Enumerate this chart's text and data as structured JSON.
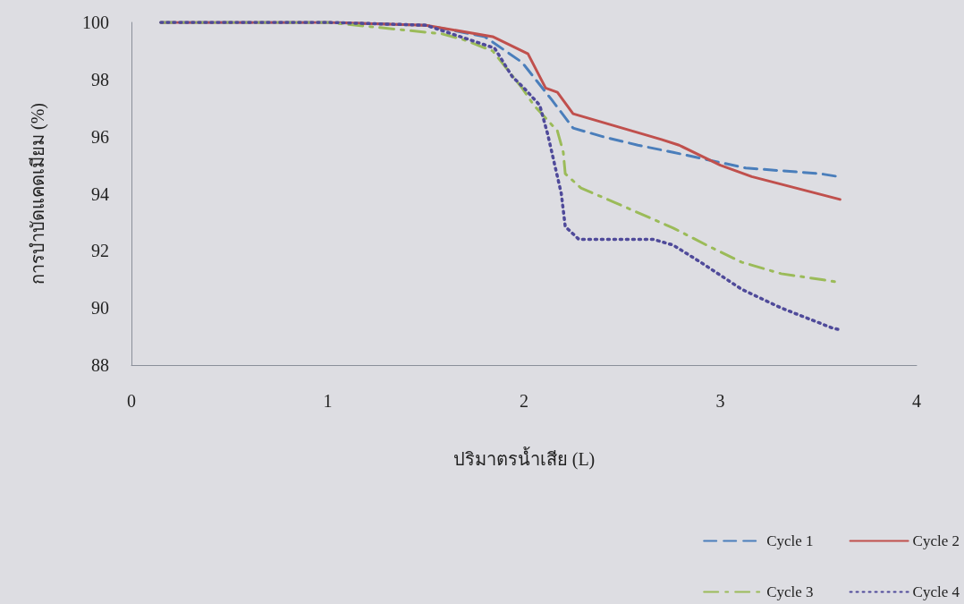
{
  "chart_data": {
    "type": "line",
    "xlabel": "ปริมาตรน้ำเสีย (L)",
    "ylabel": "การบำบัดแคดเมียม (%)",
    "xlim": [
      0,
      4
    ],
    "xticks": [
      0,
      1,
      2,
      3,
      4
    ],
    "ylim": [
      88,
      100
    ],
    "yticks": [
      88,
      90,
      92,
      94,
      96,
      98,
      100
    ],
    "legend": "bottom right",
    "marker": "none",
    "series": [
      {
        "name": "Cycle 1",
        "color": "#4a7ebb",
        "line_style": "dashed",
        "x": [
          0.15,
          1.0,
          1.5,
          1.8,
          1.99,
          2.14,
          2.25,
          2.4,
          2.58,
          2.76,
          3.13,
          3.51,
          3.6
        ],
        "values": [
          100,
          100,
          99.9,
          99.5,
          98.6,
          97.3,
          96.3,
          96.0,
          95.7,
          95.45,
          94.9,
          94.7,
          94.6
        ]
      },
      {
        "name": "Cycle 2",
        "color": "#c0504d",
        "line_style": "solid",
        "x": [
          0.15,
          1.0,
          1.5,
          1.84,
          2.02,
          2.11,
          2.17,
          2.25,
          2.7,
          2.79,
          3.0,
          3.16,
          3.61
        ],
        "values": [
          100,
          100,
          99.9,
          99.5,
          98.9,
          97.7,
          97.55,
          96.8,
          95.9,
          95.7,
          95.0,
          94.6,
          93.8
        ]
      },
      {
        "name": "Cycle 3",
        "color": "#9bbb59",
        "line_style": "dashdot",
        "x": [
          0.15,
          1.0,
          1.58,
          1.69,
          1.84,
          1.99,
          2.05,
          2.17,
          2.2,
          2.21,
          2.29,
          2.46,
          2.66,
          2.76,
          2.93,
          3.11,
          3.31,
          3.51,
          3.6
        ],
        "values": [
          100,
          100,
          99.6,
          99.4,
          99.0,
          97.7,
          97.1,
          96.2,
          95.45,
          94.7,
          94.2,
          93.7,
          93.1,
          92.8,
          92.2,
          91.6,
          91.2,
          91.0,
          90.9
        ]
      },
      {
        "name": "Cycle 4",
        "color": "#4f4a9a",
        "line_style": "dotted",
        "x": [
          0.15,
          1.0,
          1.5,
          1.85,
          1.94,
          2.0,
          2.08,
          2.12,
          2.15,
          2.19,
          2.21,
          2.28,
          2.49,
          2.66,
          2.76,
          2.9,
          3.11,
          3.31,
          3.57,
          3.6
        ],
        "values": [
          100,
          100,
          99.9,
          99.1,
          98.1,
          97.7,
          97.1,
          96.1,
          95.2,
          94.0,
          92.85,
          92.4,
          92.4,
          92.4,
          92.2,
          91.6,
          90.65,
          90.0,
          89.3,
          89.25
        ]
      }
    ]
  }
}
